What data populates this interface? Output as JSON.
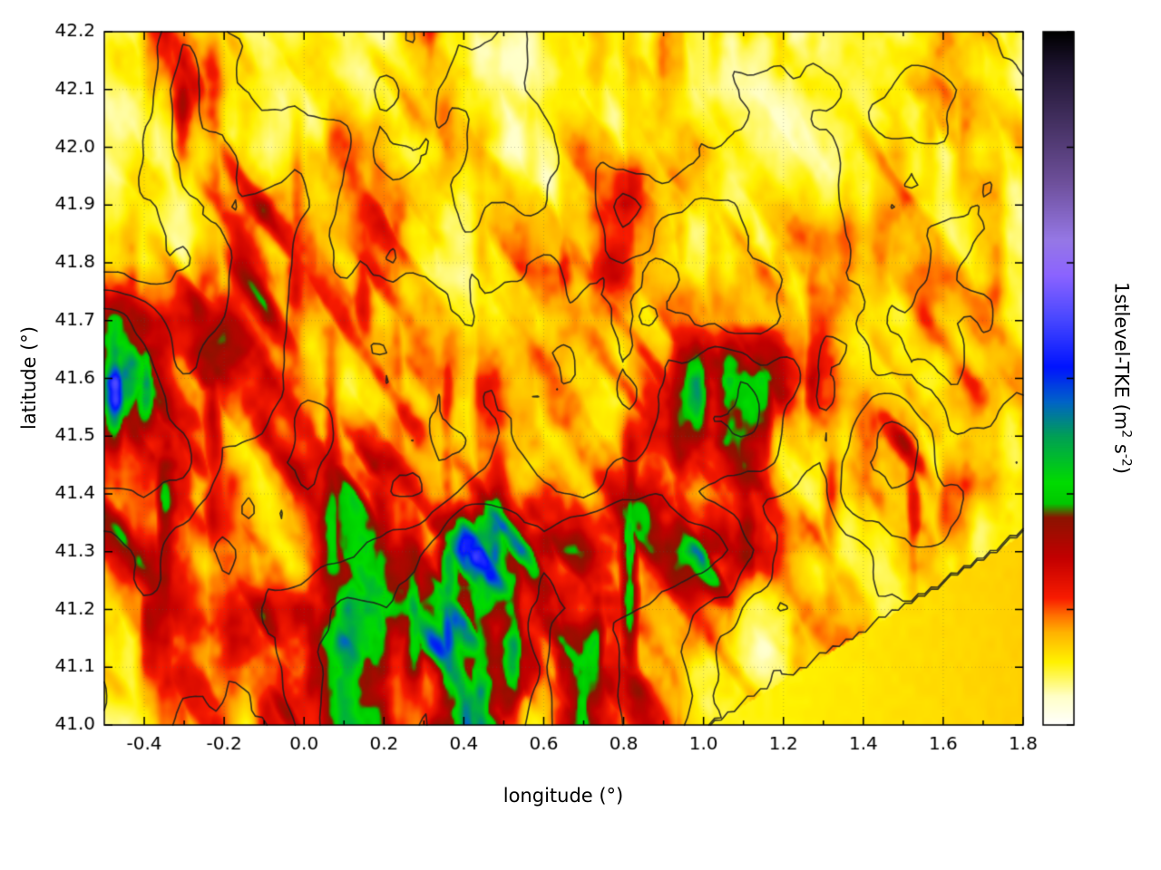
{
  "chart_data": {
    "type": "heatmap",
    "xlabel": "longitude (°)",
    "ylabel": "latitude (°)",
    "x_range": [
      -0.5,
      1.8
    ],
    "y_range": [
      41.0,
      42.2
    ],
    "x_ticks": [
      -0.4,
      -0.2,
      0.0,
      0.2,
      0.4,
      0.6,
      0.8,
      1.0,
      1.2,
      1.4,
      1.6,
      1.8
    ],
    "y_ticks": [
      41.0,
      41.1,
      41.2,
      41.3,
      41.4,
      41.5,
      41.6,
      41.7,
      41.8,
      41.9,
      42.0,
      42.1,
      42.2
    ],
    "grid_on": true,
    "colorbar": {
      "label_prefix": "1stlevel-TKE (m",
      "label_sup1": "2",
      "label_mid": " s",
      "label_sup2": "-2",
      "label_suffix": ")",
      "range": [
        0,
        6
      ],
      "ticks": [
        0,
        1,
        2,
        3,
        4,
        5,
        6
      ]
    },
    "colormap": [
      [
        0.0,
        "#ffffff"
      ],
      [
        0.25,
        "#ffffc8"
      ],
      [
        0.55,
        "#fff200"
      ],
      [
        0.8,
        "#ffb400"
      ],
      [
        0.95,
        "#ff7000"
      ],
      [
        1.1,
        "#f91c00"
      ],
      [
        1.45,
        "#c30000"
      ],
      [
        1.8,
        "#8c1400"
      ],
      [
        1.92,
        "#00c800"
      ],
      [
        2.1,
        "#00dc00"
      ],
      [
        2.5,
        "#00a055"
      ],
      [
        2.8,
        "#0064c8"
      ],
      [
        3.1,
        "#0014ff"
      ],
      [
        3.5,
        "#4646ff"
      ],
      [
        3.9,
        "#8c64ff"
      ],
      [
        4.2,
        "#9678e6"
      ],
      [
        4.7,
        "#6e509b"
      ],
      [
        5.2,
        "#463264"
      ],
      [
        5.7,
        "#1e1430"
      ],
      [
        6.0,
        "#000000"
      ]
    ],
    "contours": {
      "color": "#1e1e1e",
      "levels": [
        0.75,
        0.95,
        1.15,
        1.4
      ]
    },
    "field": {
      "lons": [
        -0.5,
        -0.4,
        -0.3,
        -0.2,
        -0.1,
        0.0,
        0.1,
        0.2,
        0.3,
        0.4,
        0.5,
        0.6,
        0.7,
        0.8,
        0.9,
        1.0,
        1.1,
        1.2,
        1.3,
        1.4,
        1.5,
        1.6,
        1.7,
        1.8
      ],
      "lats": [
        42.2,
        42.1,
        42.0,
        41.9,
        41.8,
        41.7,
        41.6,
        41.5,
        41.4,
        41.3,
        41.2,
        41.1,
        41.0
      ],
      "values": [
        [
          0.4,
          0.5,
          1.2,
          0.7,
          0.4,
          0.5,
          0.5,
          0.6,
          0.8,
          0.5,
          0.4,
          0.6,
          0.5,
          0.5,
          0.7,
          0.5,
          0.6,
          0.5,
          0.4,
          0.6,
          0.5,
          0.8,
          0.6,
          0.5
        ],
        [
          0.4,
          0.5,
          1.3,
          0.8,
          0.5,
          0.5,
          0.6,
          0.5,
          0.7,
          0.6,
          0.5,
          0.7,
          0.5,
          0.5,
          0.6,
          0.4,
          0.5,
          0.6,
          0.5,
          0.5,
          0.7,
          0.9,
          0.6,
          0.4
        ],
        [
          0.4,
          0.6,
          1.0,
          1.0,
          0.5,
          0.6,
          0.8,
          0.5,
          0.6,
          0.7,
          0.5,
          0.6,
          0.7,
          0.5,
          0.5,
          0.6,
          0.5,
          0.4,
          0.6,
          0.5,
          0.6,
          0.7,
          0.5,
          0.6
        ],
        [
          0.5,
          0.7,
          0.7,
          1.0,
          1.1,
          0.9,
          0.7,
          0.9,
          0.6,
          0.5,
          0.8,
          0.7,
          0.7,
          1.3,
          0.9,
          0.6,
          0.5,
          0.6,
          0.5,
          0.5,
          0.7,
          0.6,
          0.8,
          0.5
        ],
        [
          0.6,
          0.8,
          0.8,
          1.1,
          1.4,
          0.8,
          0.7,
          0.8,
          0.7,
          0.6,
          0.9,
          1.0,
          0.8,
          0.9,
          0.7,
          0.5,
          0.6,
          0.7,
          0.5,
          0.6,
          0.5,
          0.7,
          0.6,
          0.7
        ],
        [
          1.9,
          1.5,
          1.0,
          1.2,
          1.3,
          0.7,
          0.9,
          0.7,
          0.8,
          0.6,
          0.7,
          0.8,
          0.6,
          0.7,
          0.8,
          0.6,
          0.5,
          0.6,
          0.7,
          0.5,
          0.6,
          0.8,
          0.7,
          0.6
        ],
        [
          2.2,
          1.9,
          1.4,
          1.1,
          1.2,
          0.8,
          0.8,
          0.9,
          0.7,
          0.8,
          0.6,
          0.7,
          0.8,
          0.6,
          0.9,
          1.4,
          1.6,
          1.3,
          0.8,
          0.7,
          0.6,
          0.7,
          0.8,
          0.6
        ],
        [
          1.9,
          2.0,
          1.6,
          1.2,
          1.2,
          0.8,
          0.9,
          0.7,
          0.8,
          0.7,
          0.9,
          0.8,
          0.7,
          0.9,
          1.2,
          1.5,
          1.6,
          1.1,
          0.9,
          1.3,
          1.4,
          0.8,
          0.7,
          0.8
        ],
        [
          1.6,
          1.7,
          1.5,
          1.1,
          0.9,
          0.9,
          1.2,
          1.1,
          1.0,
          1.3,
          1.5,
          1.2,
          1.0,
          1.4,
          1.2,
          1.0,
          1.0,
          0.9,
          1.1,
          1.5,
          1.2,
          0.9,
          0.8,
          0.7
        ],
        [
          1.2,
          1.5,
          1.3,
          0.9,
          1.0,
          1.1,
          1.5,
          1.7,
          1.8,
          3.0,
          2.0,
          1.8,
          2.6,
          2.4,
          1.6,
          1.8,
          1.4,
          1.0,
          0.8,
          0.8,
          0.8,
          0.7,
          0.6,
          0.7
        ],
        [
          0.9,
          1.1,
          1.2,
          1.1,
          1.3,
          1.5,
          1.8,
          1.6,
          1.9,
          2.8,
          1.7,
          1.4,
          1.6,
          1.4,
          1.1,
          0.9,
          0.8,
          0.6,
          0.6,
          0.6,
          0.6,
          0.6,
          0.6,
          0.6
        ],
        [
          0.7,
          0.9,
          0.9,
          1.0,
          1.2,
          1.5,
          1.7,
          1.6,
          1.5,
          2.2,
          2.0,
          1.3,
          2.4,
          1.1,
          0.9,
          0.7,
          0.6,
          0.6,
          0.6,
          0.6,
          0.6,
          0.6,
          0.6,
          0.6
        ],
        [
          0.5,
          0.7,
          0.8,
          0.9,
          1.1,
          1.5,
          1.9,
          1.4,
          1.3,
          2.4,
          1.8,
          1.0,
          2.6,
          1.0,
          0.8,
          0.6,
          0.6,
          0.6,
          0.6,
          0.6,
          0.6,
          0.6,
          0.6,
          0.6
        ]
      ]
    },
    "sea_region": {
      "from_lon": 1.02,
      "boundary_slope": 0.423,
      "base_value": 0.5
    }
  }
}
